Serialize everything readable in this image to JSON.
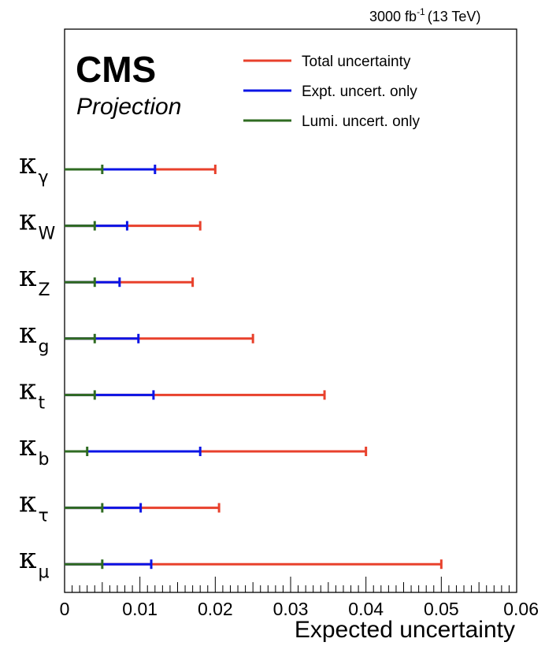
{
  "header": {
    "lumi_value": "3000 fb",
    "lumi_exp": "-1",
    "lumi_energy": "(13 TeV)"
  },
  "logo": {
    "name": "CMS",
    "subtitle": "Projection"
  },
  "chart_data": {
    "type": "bar",
    "orientation": "horizontal",
    "title": "",
    "xlabel": "Expected uncertainty",
    "ylabel": "",
    "xlim": [
      0,
      0.06
    ],
    "x_ticks": [
      "0",
      "0.01",
      "0.02",
      "0.03",
      "0.04",
      "0.05",
      "0.06"
    ],
    "categories": [
      {
        "symbol": "κ",
        "sub": "γ"
      },
      {
        "symbol": "κ",
        "sub": "W"
      },
      {
        "symbol": "κ",
        "sub": "Z"
      },
      {
        "symbol": "κ",
        "sub": "g"
      },
      {
        "symbol": "κ",
        "sub": "t"
      },
      {
        "symbol": "κ",
        "sub": "b"
      },
      {
        "symbol": "κ",
        "sub": "τ"
      },
      {
        "symbol": "κ",
        "sub": "μ"
      }
    ],
    "series": [
      {
        "name": "Total uncertainty",
        "color": "#e8412c",
        "values": [
          0.02,
          0.018,
          0.017,
          0.025,
          0.0345,
          0.04,
          0.0205,
          0.05
        ]
      },
      {
        "name": "Expt. uncert. only",
        "color": "#0b14e6",
        "values": [
          0.012,
          0.0083,
          0.0073,
          0.0098,
          0.0118,
          0.018,
          0.0101,
          0.0115
        ]
      },
      {
        "name": "Lumi. uncert. only",
        "color": "#2f6b22",
        "values": [
          0.005,
          0.004,
          0.004,
          0.004,
          0.004,
          0.003,
          0.005,
          0.005
        ]
      }
    ],
    "legend_position": "top-right",
    "grid": false
  }
}
